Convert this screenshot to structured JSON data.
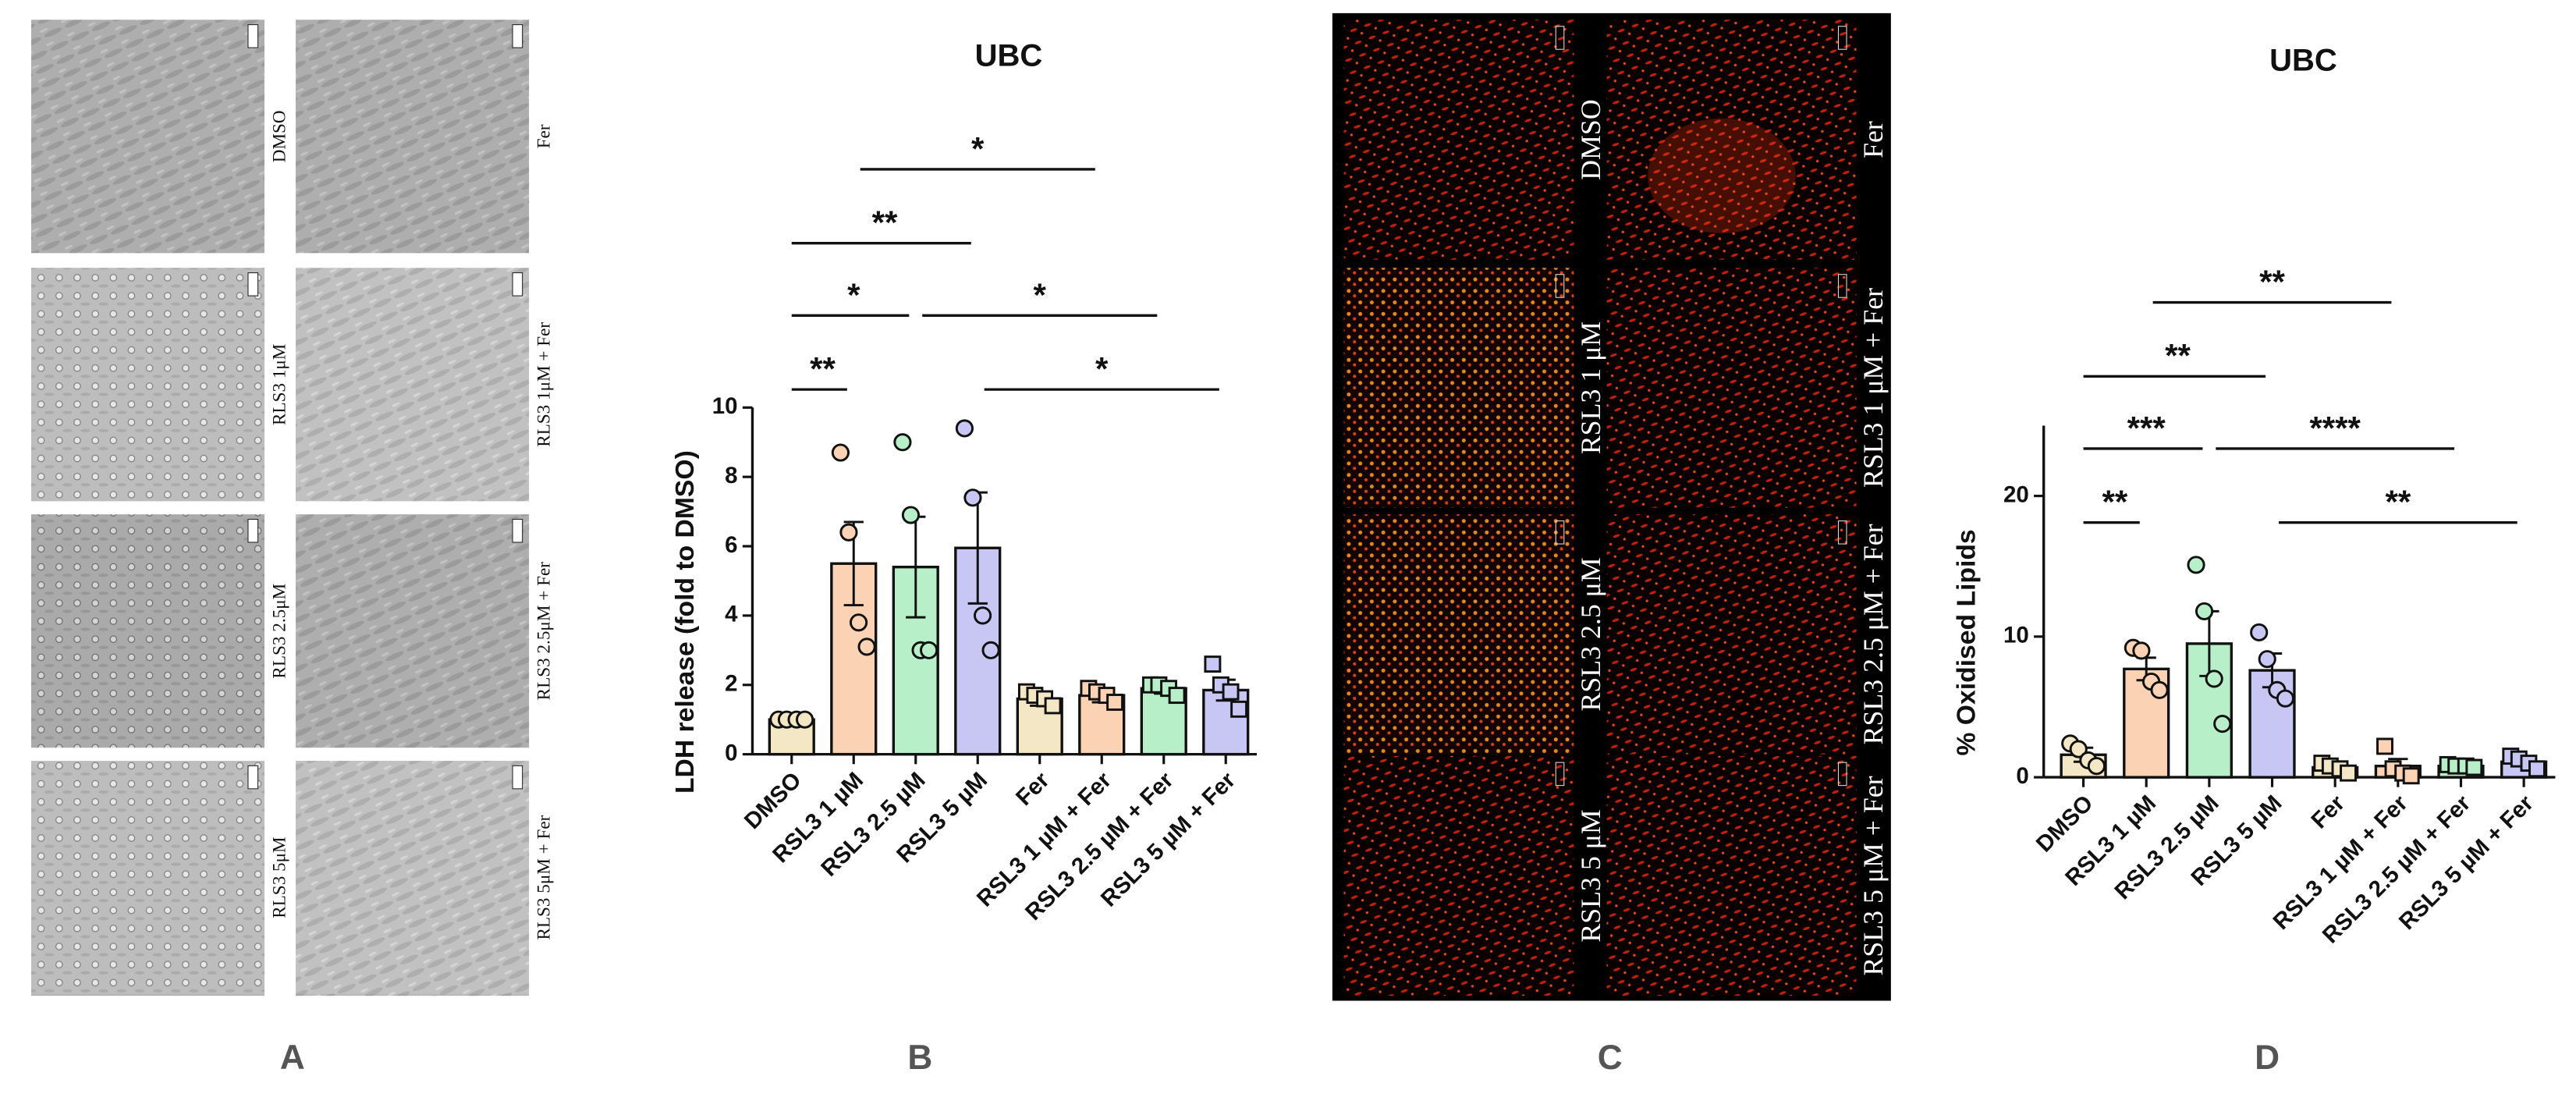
{
  "panel_labels": [
    "A",
    "B",
    "C",
    "D"
  ],
  "panel_a": {
    "labels": [
      "DMSO",
      "Fer",
      "RLS3 1μM",
      "RLS3 1μM + Fer",
      "RLS3 2.5μM",
      "RLS3 2.5μM + Fer",
      "RLS3 5μM",
      "RLS3 5μM + Fer"
    ]
  },
  "panel_c": {
    "labels": [
      "DMSO",
      "Fer",
      "RSL3 1 μM",
      "RSL3 1 μM + Fer",
      "RSL3 2.5 μM",
      "RSL3 2.5 μM + Fer",
      "RSL3 5 μM",
      "RSL3 5 μM + Fer"
    ]
  },
  "chart_data": [
    {
      "type": "bar",
      "title": "UBC",
      "ylabel": "LDH release (fold to DMSO)",
      "categories": [
        "DMSO",
        "RSL3 1 µM",
        "RSL3 2.5 µM",
        "RSL3 5 µM",
        "Fer",
        "RSL3 1 µM + Fer",
        "RSL3 2.5 µM + Fer",
        "RSL3 5 µM + Fer"
      ],
      "values": [
        1,
        5.5,
        5.4,
        5.95,
        1.6,
        1.7,
        1.9,
        1.85
      ],
      "errors": [
        0.05,
        1.2,
        1.45,
        1.6,
        0.2,
        0.2,
        0.15,
        0.3
      ],
      "points": [
        [
          1,
          1,
          1,
          1
        ],
        [
          8.7,
          6.4,
          3.8,
          3.1
        ],
        [
          9.0,
          6.9,
          3.0,
          3.0
        ],
        [
          9.4,
          7.4,
          4.0,
          3.0
        ],
        [
          1.8,
          1.7,
          1.6,
          1.4
        ],
        [
          1.9,
          1.8,
          1.7,
          1.5
        ],
        [
          2.0,
          2.0,
          1.9,
          1.7
        ],
        [
          2.6,
          2.0,
          1.8,
          1.3
        ]
      ],
      "colors": [
        "#f3e7c6",
        "#fbd3b4",
        "#b7f0c8",
        "#c8c7f4",
        "#f3e7c6",
        "#fbd3b4",
        "#b7f0c8",
        "#c8c7f4"
      ],
      "markers": [
        "circle",
        "circle",
        "circle",
        "circle",
        "square",
        "square",
        "square",
        "square"
      ],
      "ylim": [
        0,
        10
      ],
      "yticks": [
        0,
        2,
        4,
        6,
        8,
        10
      ],
      "annotations": [
        {
          "text": "**",
          "pair": [
            0,
            1
          ]
        },
        {
          "text": "*",
          "pair": [
            0,
            2
          ]
        },
        {
          "text": "**",
          "pair": [
            0,
            3
          ]
        },
        {
          "text": "*",
          "pair": [
            1,
            5
          ]
        },
        {
          "text": "*",
          "pair": [
            2,
            6
          ]
        },
        {
          "text": "*",
          "pair": [
            3,
            7
          ]
        }
      ]
    },
    {
      "type": "bar",
      "title": "UBC",
      "ylabel": "% Oxidised Lipids",
      "categories": [
        "DMSO",
        "RSL3 1 µM",
        "RSL3 2.5 µM",
        "RSL3 5 µM",
        "Fer",
        "RSL3 1 µM + Fer",
        "RSL3 2.5 µM + Fer",
        "RSL3 5 µM + Fer"
      ],
      "values": [
        1.6,
        7.7,
        9.5,
        7.6,
        0.7,
        0.8,
        0.8,
        1.1
      ],
      "errors": [
        0.5,
        0.8,
        2.3,
        1.2,
        0.2,
        0.5,
        0.1,
        0.3
      ],
      "points": [
        [
          2.4,
          2.0,
          1.2,
          0.8
        ],
        [
          9.2,
          9.0,
          6.8,
          6.2
        ],
        [
          15.1,
          11.8,
          7.0,
          3.8
        ],
        [
          10.3,
          8.4,
          6.2,
          5.6
        ],
        [
          1.0,
          0.8,
          0.6,
          0.3
        ],
        [
          2.2,
          0.6,
          0.3,
          0.1
        ],
        [
          0.9,
          0.8,
          0.8,
          0.7
        ],
        [
          1.5,
          1.3,
          1.0,
          0.6
        ]
      ],
      "colors": [
        "#f3e7c6",
        "#fbd3b4",
        "#b7f0c8",
        "#c8c7f4",
        "#f3e7c6",
        "#fbd3b4",
        "#b7f0c8",
        "#c8c7f4"
      ],
      "markers": [
        "circle",
        "circle",
        "circle",
        "circle",
        "square",
        "square",
        "square",
        "square"
      ],
      "ylim": [
        0,
        25
      ],
      "yticks": [
        0,
        10,
        20
      ],
      "annotations": [
        {
          "text": "**",
          "pair": [
            0,
            1
          ]
        },
        {
          "text": "***",
          "pair": [
            0,
            2
          ]
        },
        {
          "text": "**",
          "pair": [
            0,
            3
          ]
        },
        {
          "text": "**",
          "pair": [
            1,
            5
          ]
        },
        {
          "text": "****",
          "pair": [
            2,
            6
          ]
        },
        {
          "text": "**",
          "pair": [
            3,
            7
          ]
        }
      ]
    }
  ]
}
